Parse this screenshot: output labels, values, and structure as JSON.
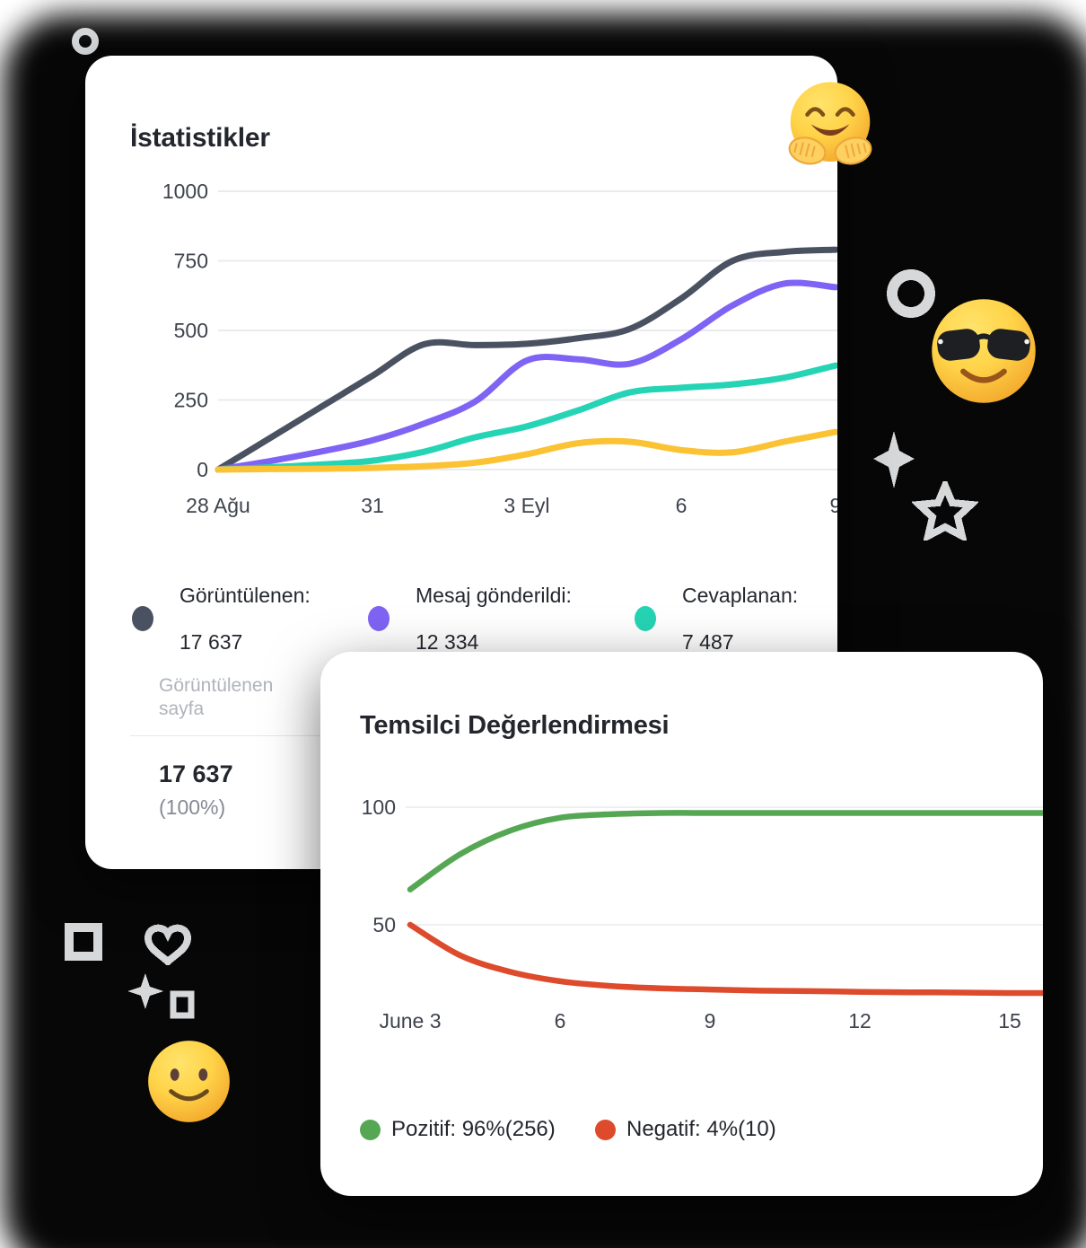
{
  "stats_card": {
    "title": "İstatistikler",
    "legend": [
      {
        "label": "Görüntülenen:",
        "value": "17 637",
        "color": "#4a5262"
      },
      {
        "label": "Mesaj gönderildi:",
        "value": "12 334",
        "color": "#7f63f4"
      },
      {
        "label": "Cevaplanan:",
        "value": "7 487",
        "color": "#25d4b4"
      }
    ],
    "table": {
      "header_line1": "Görüntülenen",
      "header_line2": "sayfa",
      "value": "17 637",
      "percent": "(100%)"
    }
  },
  "rating_card": {
    "title": "Temsilci Değerlendirmesi",
    "legend": [
      {
        "label": "Pozitif: 96%(256)",
        "color": "#56a754"
      },
      {
        "label": "Negatif: 4%(10)",
        "color": "#dd4a2c"
      }
    ]
  },
  "chart_data": [
    {
      "type": "line",
      "title": "İstatistikler",
      "xlabel": "",
      "ylabel": "",
      "ylim": [
        0,
        1000
      ],
      "grid": "horizontal",
      "legend_position": "bottom",
      "y_ticks": [
        0,
        250,
        500,
        750,
        1000
      ],
      "x_tick_labels": [
        "28 Ağu",
        "31",
        "3 Eyl",
        "6",
        "9"
      ],
      "x_tick_days": [
        0,
        3,
        6,
        9,
        12
      ],
      "x_days": [
        0,
        1,
        2,
        3,
        4,
        5,
        6,
        7,
        8,
        9,
        10,
        11,
        12
      ],
      "series": [
        {
          "name": "Görüntülenen",
          "total": "17 637",
          "color": "#4a5262",
          "values": [
            0,
            112,
            225,
            337,
            450,
            447,
            452,
            472,
            505,
            615,
            750,
            782,
            790
          ]
        },
        {
          "name": "Mesaj gönderildi",
          "total": "12 334",
          "color": "#7f63f4",
          "values": [
            0,
            30,
            65,
            105,
            165,
            245,
            392,
            396,
            380,
            468,
            590,
            668,
            655
          ]
        },
        {
          "name": "Cevaplanan",
          "total": "7 487",
          "color": "#25d4b4",
          "values": [
            0,
            8,
            18,
            32,
            64,
            116,
            155,
            213,
            277,
            294,
            306,
            330,
            374
          ]
        },
        {
          "name": "",
          "total": "",
          "color": "#fbc233",
          "values": [
            0,
            2,
            3,
            6,
            12,
            25,
            55,
            95,
            100,
            70,
            62,
            100,
            135
          ]
        }
      ]
    },
    {
      "type": "line",
      "title": "Temsilci Değerlendirmesi",
      "xlabel": "",
      "ylabel": "",
      "ylim": [
        0,
        110
      ],
      "grid": "horizontal",
      "legend_position": "bottom",
      "y_ticks": [
        50,
        100
      ],
      "x_tick_labels": [
        "June 3",
        "6",
        "9",
        "12",
        "15"
      ],
      "x_tick_days": [
        0,
        3,
        6,
        9,
        12
      ],
      "x_days": [
        0,
        1,
        2,
        3,
        4,
        5,
        6,
        7,
        8,
        9,
        10,
        11,
        12,
        13
      ],
      "series": [
        {
          "name": "Pozitif",
          "label": "Pozitif: 96%(256)",
          "color": "#56a754",
          "values": [
            65,
            80,
            90,
            95.5,
            97,
            97.5,
            97.5,
            97.5,
            97.5,
            97.5,
            97.5,
            97.5,
            97.5,
            97.5
          ]
        },
        {
          "name": "Negatif",
          "label": "Negatif: 4%(10)",
          "color": "#dd4a2c",
          "values": [
            50,
            37,
            30,
            26,
            24,
            23,
            22.5,
            22,
            21.8,
            21.5,
            21.3,
            21.2,
            21,
            21
          ]
        }
      ]
    }
  ],
  "emojis": [
    {
      "name": "hugging-face-emoji"
    },
    {
      "name": "smiling-face-with-sunglasses-emoji"
    },
    {
      "name": "slightly-smiling-face-emoji"
    }
  ],
  "decorations": {
    "color": "#d6d8da",
    "names": [
      "circle-deco",
      "pixel-ring-deco",
      "sparkle-deco",
      "star-deco",
      "square-ring-deco",
      "heart-deco",
      "plus-sparkle-deco",
      "mini-square-deco"
    ]
  }
}
